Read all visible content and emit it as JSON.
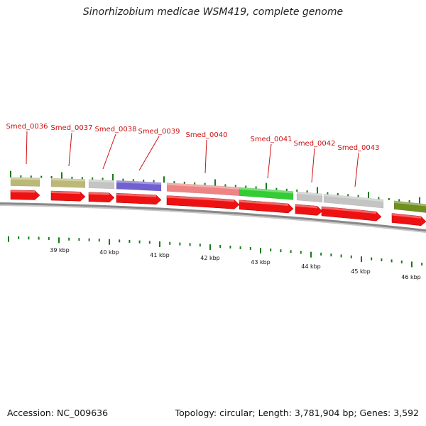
{
  "title": "Sinorhizobium medicae WSM419, complete genome",
  "footer": {
    "accession": "Accession: NC_009636",
    "summary": "Topology: circular; Length: 3,781,904 bp; Genes: 3,592"
  },
  "colors": {
    "cds": "#ee1111",
    "tick": "#1a7a1a",
    "label": "#cc1111",
    "backbone": "#888888"
  },
  "genes": [
    {
      "name": "Smed_0036",
      "color": "#bcb877"
    },
    {
      "name": "Smed_0037",
      "color": "#bcb877"
    },
    {
      "name": "Smed_0038",
      "color": "#c4c4c4"
    },
    {
      "name": "Smed_0039",
      "color": "#7060d0"
    },
    {
      "name": "Smed_0040",
      "color": "#ee8585"
    },
    {
      "name": "Smed_0041",
      "color": "#33cc33"
    },
    {
      "name": "Smed_0042",
      "color": "#c4c4c4"
    },
    {
      "name": "Smed_0043",
      "color": "#c4c4c4"
    },
    {
      "name": "",
      "color": "#6f8f1f"
    }
  ],
  "kbp_labels": [
    "39 kbp",
    "40 kbp",
    "41 kbp",
    "42 kbp",
    "43 kbp",
    "44 kbp",
    "45 kbp",
    "46 kbp"
  ]
}
